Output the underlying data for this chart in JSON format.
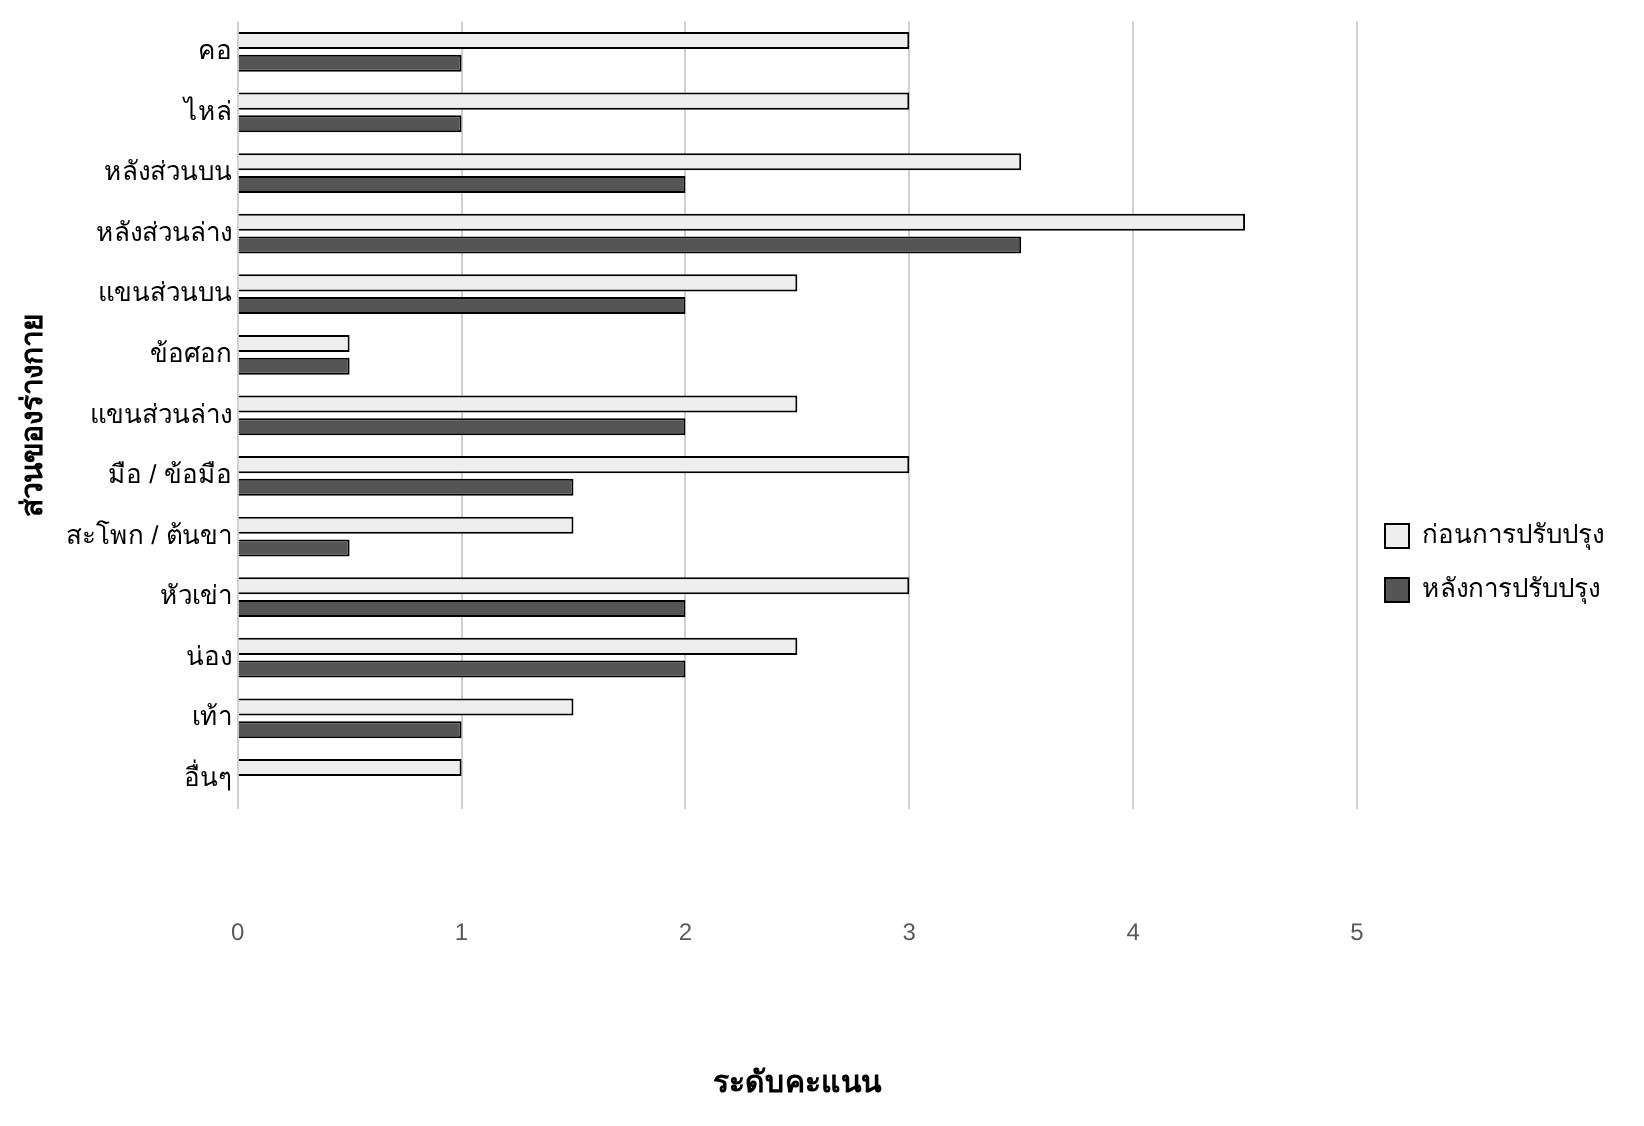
{
  "chart_data": {
    "type": "bar",
    "orientation": "horizontal",
    "xlabel": "ระดับคะแนน",
    "ylabel": "ส่วนของร่างกาย",
    "categories": [
      "คอ",
      "ไหล่",
      "หลังส่วนบน",
      "หลังส่วนล่าง",
      "แขนส่วนบน",
      "ข้อศอก",
      "แขนส่วนล่าง",
      "มือ / ข้อมือ",
      "สะโพก / ต้นขา",
      "หัวเข่า",
      "น่อง",
      "เท้า",
      "อื่นๆ"
    ],
    "series": [
      {
        "name": "ก่อนการปรับปรุง",
        "color": "#eeeeee",
        "values": [
          3,
          3,
          3.5,
          4.5,
          2.5,
          0.5,
          2.5,
          3,
          1.5,
          3,
          2.5,
          1.5,
          1
        ]
      },
      {
        "name": "หลังการปรับปรุง",
        "color": "#555555",
        "values": [
          1,
          1,
          2,
          3.5,
          2,
          0.5,
          2,
          1.5,
          0.5,
          2,
          2,
          1,
          0
        ]
      }
    ],
    "xlim": [
      0,
      5
    ],
    "xticks": [
      0,
      1,
      2,
      3,
      4,
      5
    ],
    "grid": "x",
    "legend": "right"
  }
}
